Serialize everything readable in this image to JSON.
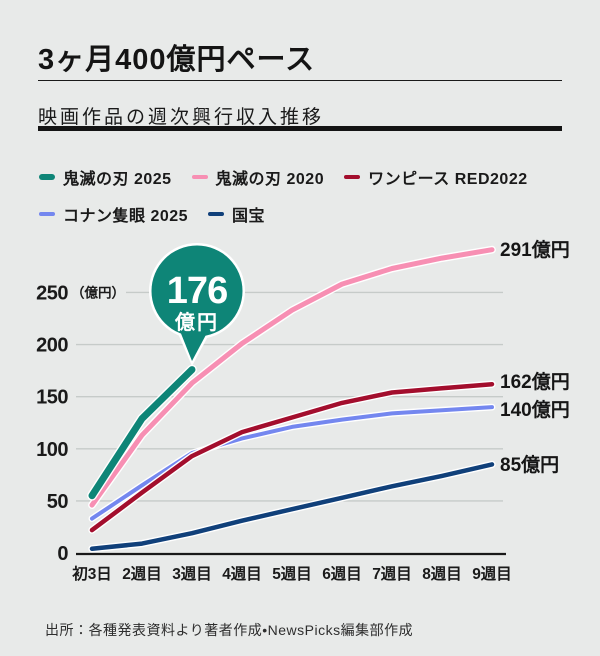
{
  "header": {
    "title": "3ヶ月400億円ペース",
    "subtitle": "映画作品の週次興行収入推移"
  },
  "chart_data": {
    "type": "line",
    "title": "3ヶ月400億円ペース",
    "subtitle": "映画作品の週次興行収入推移",
    "x_labels": [
      "初3日",
      "2週目",
      "3週目",
      "4週目",
      "5週目",
      "6週目",
      "7週目",
      "8週目",
      "9週目"
    ],
    "y_ticks": [
      0,
      50,
      100,
      150,
      200,
      250
    ],
    "y_unit": "（億円）",
    "ylim": [
      0,
      300
    ],
    "grid": true,
    "legend_position": "top-left",
    "colors": {
      "background": "#e8eae9",
      "gridline": "#c6cbc9",
      "axis": "#191919",
      "text": "#1a1a1a",
      "callout_text": "#ffffff"
    },
    "series": [
      {
        "key": "kimetsu-2025",
        "name": "鬼滅の刃 2025",
        "color": "#0e8577",
        "values": [
          55,
          129,
          176
        ]
      },
      {
        "key": "kimetsu-2020",
        "name": "鬼滅の刃 2020",
        "color": "#f78fb3",
        "values": [
          46,
          113,
          163,
          201,
          233,
          258,
          273,
          283,
          291
        ],
        "end_label": "291億円"
      },
      {
        "key": "onepiece-red-2022",
        "name": "ワンピース RED2022",
        "color": "#a30e2d",
        "values": [
          22,
          58,
          93,
          116,
          130,
          144,
          154,
          158,
          162
        ],
        "end_label": "162億円"
      },
      {
        "key": "conan-2025",
        "name": "コナン隻眼 2025",
        "color": "#7487ef",
        "values": [
          33,
          65,
          96,
          110,
          121,
          128,
          134,
          137,
          140
        ],
        "end_label": "140億円"
      },
      {
        "key": "kokuho",
        "name": "国宝",
        "color": "#10407a",
        "values": [
          4,
          9,
          19,
          31,
          42,
          53,
          64,
          74,
          85
        ],
        "end_label": "85億円"
      }
    ],
    "callout": {
      "series": "kimetsu-2025",
      "value": "176",
      "unit": "億円",
      "color": "#0e8577"
    }
  },
  "footer": {
    "source": "出所：各種発表資料より著者作成•NewsPicks編集部作成"
  }
}
